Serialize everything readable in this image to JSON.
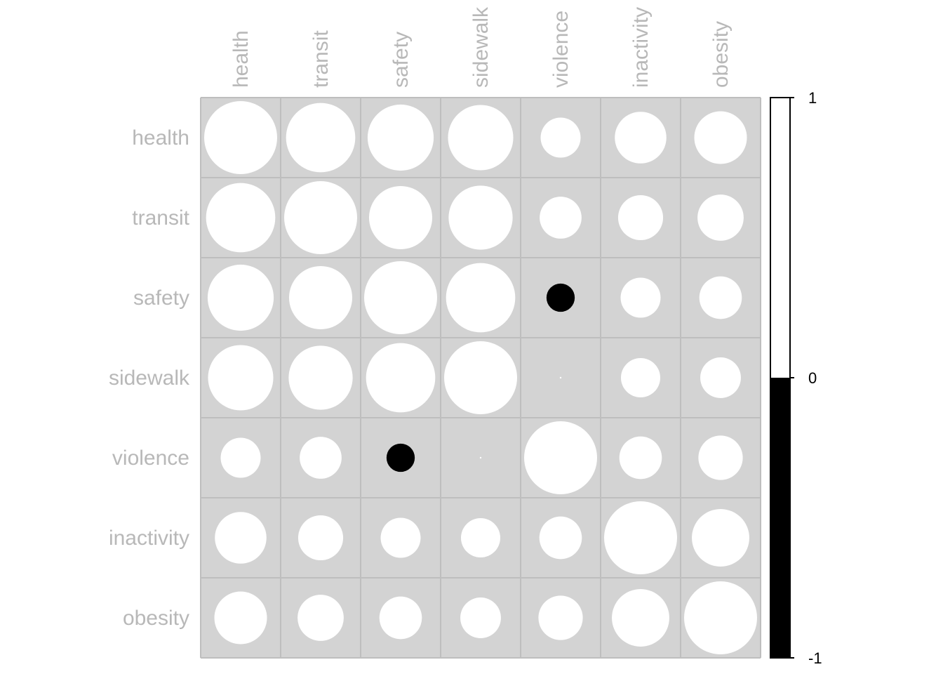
{
  "chart_data": {
    "type": "heatmap",
    "variables": [
      "health",
      "transit",
      "safety",
      "sidewalk",
      "violence",
      "inactivity",
      "obesity"
    ],
    "matrix": [
      [
        1.0,
        0.9,
        0.82,
        0.8,
        0.3,
        0.5,
        0.52
      ],
      [
        0.9,
        1.0,
        0.75,
        0.77,
        0.33,
        0.38,
        0.4
      ],
      [
        0.82,
        0.75,
        1.0,
        0.9,
        -0.15,
        0.3,
        0.34
      ],
      [
        0.8,
        0.77,
        0.9,
        1.0,
        0.0,
        0.29,
        0.31
      ],
      [
        0.3,
        0.33,
        -0.15,
        0.0,
        1.0,
        0.34,
        0.37
      ],
      [
        0.5,
        0.38,
        0.3,
        0.29,
        0.34,
        1.0,
        0.62
      ],
      [
        0.52,
        0.4,
        0.34,
        0.31,
        0.37,
        0.62,
        1.0
      ]
    ],
    "colorbar": {
      "range": [
        -1,
        1
      ],
      "ticks": [
        "1",
        "0",
        "-1"
      ],
      "colors": {
        "positive": "#ffffff",
        "negative": "#000000"
      }
    },
    "cell_background": "#d3d3d3",
    "grid_color": "#bebebe",
    "label_color": "#b8b8b8",
    "glyph": "circle"
  }
}
